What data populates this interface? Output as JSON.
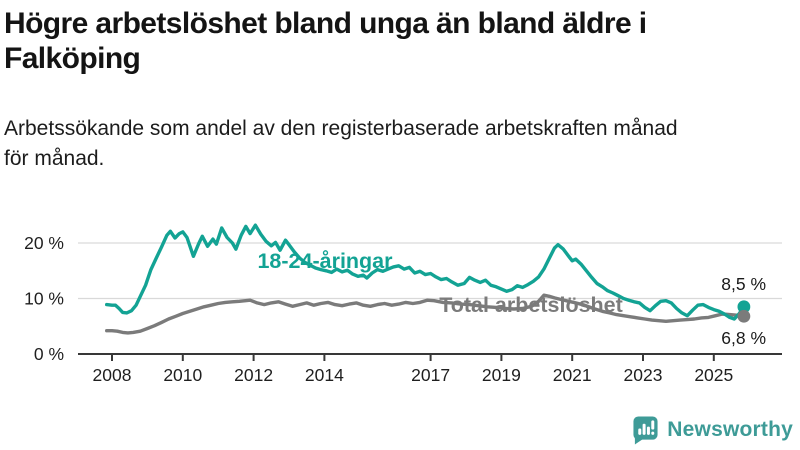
{
  "header": {
    "title_lines": [
      "Högre arbetslöshet bland unga än bland äldre i",
      "Falköping"
    ],
    "subtitle_lines": [
      "Arbetssökande som andel av den registerbaserade arbetskraften månad",
      "för månad."
    ]
  },
  "chart_data": {
    "type": "line",
    "title": "Högre arbetslöshet bland unga än bland äldre i Falköping",
    "subtitle": "Arbetssökande som andel av den registerbaserade arbetskraften månad för månad.",
    "grid": true,
    "legend_position": "inline-labels",
    "x_axis": {
      "ticks": [
        2008,
        2010,
        2012,
        2014,
        2017,
        2019,
        2021,
        2023,
        2025
      ],
      "range": [
        2007.85,
        2026.3
      ]
    },
    "y_axis": {
      "tick_labels": [
        "0 %",
        "10 %",
        "20 %"
      ],
      "tick_values": [
        0,
        10,
        20
      ],
      "range": [
        0,
        24
      ],
      "unit": "%"
    },
    "series": [
      {
        "name": "18-24-åringar",
        "color": "#13a394",
        "end_label": "8,5 %",
        "end_value": 8.5,
        "points": [
          [
            2007.85,
            8.9
          ],
          [
            2008.0,
            8.8
          ],
          [
            2008.1,
            8.8
          ],
          [
            2008.2,
            8.2
          ],
          [
            2008.3,
            7.5
          ],
          [
            2008.42,
            7.4
          ],
          [
            2008.55,
            7.8
          ],
          [
            2008.68,
            8.8
          ],
          [
            2008.8,
            10.4
          ],
          [
            2008.95,
            12.4
          ],
          [
            2009.1,
            15.2
          ],
          [
            2009.25,
            17.3
          ],
          [
            2009.4,
            19.3
          ],
          [
            2009.55,
            21.4
          ],
          [
            2009.65,
            22.1
          ],
          [
            2009.78,
            20.9
          ],
          [
            2009.9,
            21.7
          ],
          [
            2010.0,
            22.0
          ],
          [
            2010.12,
            21.0
          ],
          [
            2010.3,
            17.6
          ],
          [
            2010.45,
            19.9
          ],
          [
            2010.55,
            21.2
          ],
          [
            2010.7,
            19.4
          ],
          [
            2010.85,
            20.7
          ],
          [
            2010.95,
            19.8
          ],
          [
            2011.1,
            22.7
          ],
          [
            2011.25,
            21.0
          ],
          [
            2011.4,
            20.0
          ],
          [
            2011.5,
            18.9
          ],
          [
            2011.65,
            21.4
          ],
          [
            2011.78,
            23.0
          ],
          [
            2011.9,
            21.7
          ],
          [
            2012.05,
            23.2
          ],
          [
            2012.2,
            21.6
          ],
          [
            2012.35,
            20.3
          ],
          [
            2012.5,
            19.5
          ],
          [
            2012.62,
            20.1
          ],
          [
            2012.75,
            18.7
          ],
          [
            2012.9,
            20.5
          ],
          [
            2013.0,
            19.7
          ],
          [
            2013.15,
            18.4
          ],
          [
            2013.3,
            17.3
          ],
          [
            2013.45,
            16.5
          ],
          [
            2013.6,
            16.0
          ],
          [
            2013.75,
            15.5
          ],
          [
            2013.9,
            15.2
          ],
          [
            2014.05,
            15.0
          ],
          [
            2014.2,
            14.7
          ],
          [
            2014.35,
            15.3
          ],
          [
            2014.5,
            14.8
          ],
          [
            2014.65,
            15.1
          ],
          [
            2014.8,
            14.4
          ],
          [
            2014.95,
            14.0
          ],
          [
            2015.1,
            14.2
          ],
          [
            2015.2,
            13.7
          ],
          [
            2015.35,
            14.6
          ],
          [
            2015.5,
            15.2
          ],
          [
            2015.65,
            14.9
          ],
          [
            2015.8,
            15.3
          ],
          [
            2015.95,
            15.7
          ],
          [
            2016.1,
            15.9
          ],
          [
            2016.25,
            15.3
          ],
          [
            2016.4,
            15.6
          ],
          [
            2016.55,
            14.6
          ],
          [
            2016.7,
            14.9
          ],
          [
            2016.85,
            14.3
          ],
          [
            2017.0,
            14.5
          ],
          [
            2017.15,
            13.9
          ],
          [
            2017.3,
            13.4
          ],
          [
            2017.45,
            13.6
          ],
          [
            2017.6,
            13.0
          ],
          [
            2017.77,
            12.4
          ],
          [
            2017.95,
            12.7
          ],
          [
            2018.1,
            13.8
          ],
          [
            2018.25,
            13.3
          ],
          [
            2018.4,
            12.9
          ],
          [
            2018.55,
            13.3
          ],
          [
            2018.7,
            12.4
          ],
          [
            2018.85,
            12.1
          ],
          [
            2019.0,
            11.7
          ],
          [
            2019.15,
            11.3
          ],
          [
            2019.3,
            11.6
          ],
          [
            2019.45,
            12.3
          ],
          [
            2019.6,
            12.0
          ],
          [
            2019.75,
            12.5
          ],
          [
            2019.9,
            13.1
          ],
          [
            2020.05,
            13.9
          ],
          [
            2020.2,
            15.3
          ],
          [
            2020.35,
            17.2
          ],
          [
            2020.5,
            19.1
          ],
          [
            2020.6,
            19.7
          ],
          [
            2020.75,
            18.9
          ],
          [
            2020.9,
            17.6
          ],
          [
            2021.0,
            16.8
          ],
          [
            2021.1,
            17.1
          ],
          [
            2021.25,
            16.2
          ],
          [
            2021.4,
            15.0
          ],
          [
            2021.55,
            13.8
          ],
          [
            2021.7,
            12.7
          ],
          [
            2021.85,
            12.1
          ],
          [
            2022.0,
            11.4
          ],
          [
            2022.15,
            11.0
          ],
          [
            2022.3,
            10.5
          ],
          [
            2022.45,
            10.0
          ],
          [
            2022.6,
            9.7
          ],
          [
            2022.75,
            9.4
          ],
          [
            2022.9,
            9.2
          ],
          [
            2023.05,
            8.4
          ],
          [
            2023.2,
            7.8
          ],
          [
            2023.35,
            8.7
          ],
          [
            2023.5,
            9.5
          ],
          [
            2023.65,
            9.6
          ],
          [
            2023.8,
            9.2
          ],
          [
            2023.95,
            8.2
          ],
          [
            2024.1,
            7.4
          ],
          [
            2024.25,
            6.9
          ],
          [
            2024.4,
            7.9
          ],
          [
            2024.55,
            8.8
          ],
          [
            2024.7,
            8.9
          ],
          [
            2024.85,
            8.4
          ],
          [
            2025.0,
            8.0
          ],
          [
            2025.15,
            7.7
          ],
          [
            2025.3,
            7.2
          ],
          [
            2025.45,
            6.6
          ],
          [
            2025.58,
            6.3
          ],
          [
            2025.72,
            7.3
          ],
          [
            2025.85,
            8.5
          ]
        ]
      },
      {
        "name": "Total arbetslöshet",
        "color": "#7b7b7b",
        "end_label": "6,8 %",
        "end_value": 6.8,
        "points": [
          [
            2007.85,
            4.2
          ],
          [
            2008.0,
            4.2
          ],
          [
            2008.15,
            4.1
          ],
          [
            2008.3,
            3.9
          ],
          [
            2008.45,
            3.8
          ],
          [
            2008.6,
            3.9
          ],
          [
            2008.8,
            4.1
          ],
          [
            2009.0,
            4.6
          ],
          [
            2009.2,
            5.1
          ],
          [
            2009.4,
            5.7
          ],
          [
            2009.6,
            6.3
          ],
          [
            2009.8,
            6.8
          ],
          [
            2010.0,
            7.3
          ],
          [
            2010.2,
            7.7
          ],
          [
            2010.4,
            8.1
          ],
          [
            2010.6,
            8.5
          ],
          [
            2010.8,
            8.8
          ],
          [
            2011.0,
            9.1
          ],
          [
            2011.2,
            9.3
          ],
          [
            2011.4,
            9.4
          ],
          [
            2011.6,
            9.5
          ],
          [
            2011.9,
            9.7
          ],
          [
            2012.1,
            9.2
          ],
          [
            2012.3,
            8.9
          ],
          [
            2012.5,
            9.2
          ],
          [
            2012.7,
            9.4
          ],
          [
            2012.9,
            9.0
          ],
          [
            2013.1,
            8.6
          ],
          [
            2013.3,
            8.9
          ],
          [
            2013.5,
            9.2
          ],
          [
            2013.7,
            8.8
          ],
          [
            2013.9,
            9.1
          ],
          [
            2014.1,
            9.3
          ],
          [
            2014.3,
            8.9
          ],
          [
            2014.5,
            8.7
          ],
          [
            2014.7,
            9.0
          ],
          [
            2014.9,
            9.2
          ],
          [
            2015.1,
            8.8
          ],
          [
            2015.3,
            8.6
          ],
          [
            2015.5,
            8.9
          ],
          [
            2015.7,
            9.1
          ],
          [
            2015.9,
            8.8
          ],
          [
            2016.1,
            9.0
          ],
          [
            2016.3,
            9.3
          ],
          [
            2016.5,
            9.1
          ],
          [
            2016.7,
            9.3
          ],
          [
            2016.9,
            9.7
          ],
          [
            2017.1,
            9.6
          ],
          [
            2017.35,
            9.3
          ],
          [
            2017.6,
            9.2
          ],
          [
            2017.85,
            9.0
          ],
          [
            2018.1,
            8.9
          ],
          [
            2018.35,
            8.7
          ],
          [
            2018.6,
            8.5
          ],
          [
            2018.85,
            8.4
          ],
          [
            2019.1,
            8.2
          ],
          [
            2019.35,
            8.1
          ],
          [
            2019.6,
            8.2
          ],
          [
            2019.85,
            8.6
          ],
          [
            2020.05,
            9.5
          ],
          [
            2020.2,
            10.6
          ],
          [
            2020.35,
            10.4
          ],
          [
            2020.5,
            10.1
          ],
          [
            2020.7,
            9.8
          ],
          [
            2020.9,
            9.5
          ],
          [
            2021.1,
            9.2
          ],
          [
            2021.35,
            8.8
          ],
          [
            2021.6,
            8.2
          ],
          [
            2021.85,
            7.7
          ],
          [
            2022.05,
            7.4
          ],
          [
            2022.25,
            7.1
          ],
          [
            2022.45,
            6.9
          ],
          [
            2022.65,
            6.7
          ],
          [
            2022.85,
            6.5
          ],
          [
            2023.05,
            6.3
          ],
          [
            2023.25,
            6.1
          ],
          [
            2023.45,
            6.0
          ],
          [
            2023.65,
            5.9
          ],
          [
            2023.85,
            6.0
          ],
          [
            2024.05,
            6.1
          ],
          [
            2024.25,
            6.2
          ],
          [
            2024.45,
            6.3
          ],
          [
            2024.65,
            6.5
          ],
          [
            2024.85,
            6.6
          ],
          [
            2025.05,
            6.9
          ],
          [
            2025.25,
            7.2
          ],
          [
            2025.45,
            7.1
          ],
          [
            2025.65,
            7.0
          ],
          [
            2025.85,
            6.8
          ]
        ]
      }
    ]
  },
  "footer": {
    "brand": "Newsworthy",
    "brand_color": "#3e9b97",
    "logo_icon": "bar-chart-speech-bubble-icon"
  }
}
